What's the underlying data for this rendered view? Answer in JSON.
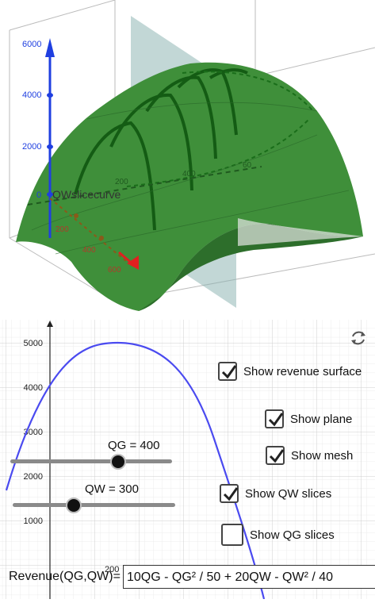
{
  "view3d": {
    "z_ticks": [
      "6000",
      "4000",
      "2000",
      "0"
    ],
    "x_ticks": [
      "200",
      "400",
      "600"
    ],
    "y_ticks": [
      "200",
      "400",
      "60"
    ],
    "curve_label": "QWslicecurve",
    "colors": {
      "surface": "#3f8f3a",
      "surface_dark": "#1f6b1f",
      "axis_z": "#1f3fe0",
      "axis_x": "#e02020",
      "plane": "#8fb7b5"
    }
  },
  "graph2d": {
    "y_ticks": [
      "5000",
      "4000",
      "3000",
      "2000",
      "1000"
    ],
    "x_tick": "200",
    "curve_color": "#4a4af0"
  },
  "sliders": {
    "qg": {
      "label": "QG = 400",
      "value": 400,
      "min": 0,
      "max": 600
    },
    "qw": {
      "label": "QW = 300",
      "value": 300,
      "min": 0,
      "max": 800
    }
  },
  "checkboxes": [
    {
      "label": "Show revenue surface",
      "checked": true
    },
    {
      "label": "Show plane",
      "checked": true
    },
    {
      "label": "Show mesh",
      "checked": true
    },
    {
      "label": "Show QW slices",
      "checked": true
    },
    {
      "label": "Show QG slices",
      "checked": false
    }
  ],
  "input": {
    "label": "Revenue(QG,QW)=",
    "value": "10QG - QG² / 50 + 20QW - QW² / 40"
  },
  "icons": {
    "refresh": "refresh-icon"
  }
}
